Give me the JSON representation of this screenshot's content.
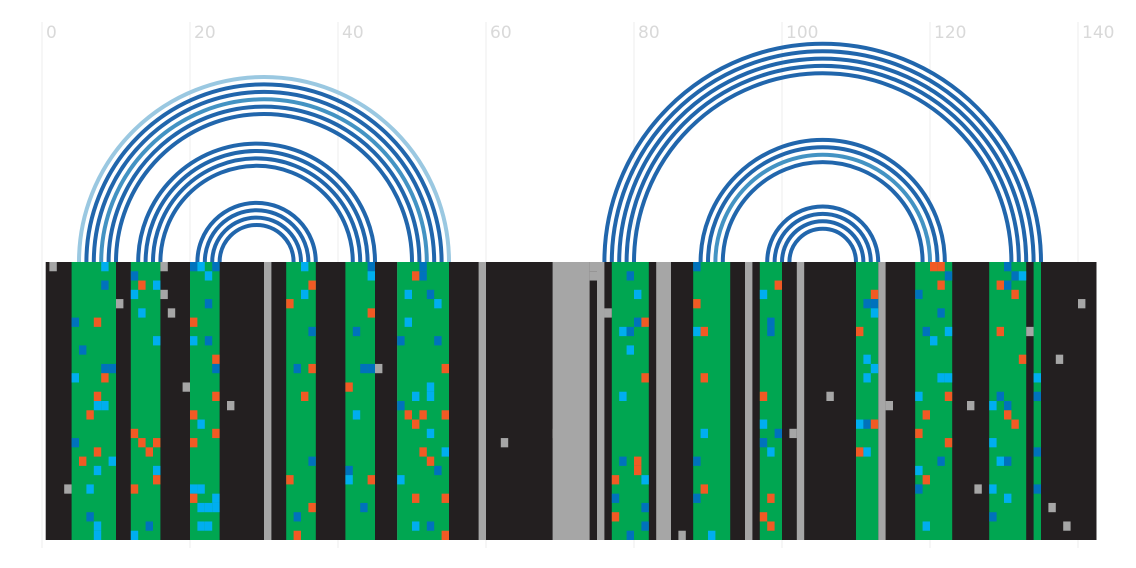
{
  "chart_data": {
    "type": "arc-diagram",
    "x_axis": {
      "min": 0,
      "max": 142,
      "ticks": [
        0,
        20,
        40,
        60,
        80,
        100,
        120,
        140
      ],
      "tick_labels": [
        "0",
        "20",
        "40",
        "60",
        "80",
        "100",
        "120",
        "140"
      ],
      "grid": true
    },
    "arcs": [
      {
        "start": 5,
        "end": 55,
        "color": "#9ac8e1"
      },
      {
        "start": 6,
        "end": 54,
        "color": "#2166ac"
      },
      {
        "start": 7,
        "end": 53,
        "color": "#2166ac"
      },
      {
        "start": 8,
        "end": 52,
        "color": "#4393c3"
      },
      {
        "start": 9,
        "end": 51,
        "color": "#2166ac"
      },
      {
        "start": 10,
        "end": 50,
        "color": "#2166ac"
      },
      {
        "start": 13,
        "end": 45,
        "color": "#2166ac"
      },
      {
        "start": 14,
        "end": 44,
        "color": "#2166ac"
      },
      {
        "start": 15,
        "end": 43,
        "color": "#2166ac"
      },
      {
        "start": 16,
        "end": 42,
        "color": "#2166ac"
      },
      {
        "start": 21,
        "end": 37,
        "color": "#2166ac"
      },
      {
        "start": 22,
        "end": 36,
        "color": "#2166ac"
      },
      {
        "start": 23,
        "end": 35,
        "color": "#2166ac"
      },
      {
        "start": 24,
        "end": 34,
        "color": "#2166ac"
      },
      {
        "start": 76,
        "end": 135,
        "color": "#2166ac"
      },
      {
        "start": 77,
        "end": 134,
        "color": "#2166ac"
      },
      {
        "start": 78,
        "end": 133,
        "color": "#2166ac"
      },
      {
        "start": 79,
        "end": 132,
        "color": "#2166ac"
      },
      {
        "start": 80,
        "end": 131,
        "color": "#2166ac"
      },
      {
        "start": 89,
        "end": 122,
        "color": "#2166ac"
      },
      {
        "start": 90,
        "end": 121,
        "color": "#2166ac"
      },
      {
        "start": 91,
        "end": 120,
        "color": "#4393c3"
      },
      {
        "start": 92,
        "end": 119,
        "color": "#2166ac"
      },
      {
        "start": 98,
        "end": 113,
        "color": "#2166ac"
      },
      {
        "start": 99,
        "end": 112,
        "color": "#2166ac"
      },
      {
        "start": 100,
        "end": 111,
        "color": "#2166ac"
      },
      {
        "start": 101,
        "end": 110,
        "color": "#2166ac"
      }
    ],
    "track": {
      "background_color": "#231f20",
      "rows": 30,
      "green_bands": [
        [
          4,
          10
        ],
        [
          12,
          16
        ],
        [
          20,
          24
        ],
        [
          33,
          37
        ],
        [
          41,
          45
        ],
        [
          48,
          55
        ],
        [
          77,
          82
        ],
        [
          88,
          93
        ],
        [
          97,
          100
        ],
        [
          110,
          113
        ],
        [
          118,
          123
        ],
        [
          128,
          133
        ],
        [
          134,
          135
        ]
      ],
      "gray_bands": [
        [
          30,
          31
        ],
        [
          48,
          49
        ],
        [
          51,
          52
        ],
        [
          59,
          60
        ],
        [
          69,
          74
        ],
        [
          75,
          76
        ],
        [
          83,
          85
        ],
        [
          95,
          96
        ],
        [
          102,
          103
        ],
        [
          113,
          114
        ]
      ],
      "green_color": "#00a651",
      "gray_color": "#a6a6a6",
      "accent_colors": [
        "#f15a24",
        "#00aeef",
        "#0072bc"
      ]
    }
  }
}
